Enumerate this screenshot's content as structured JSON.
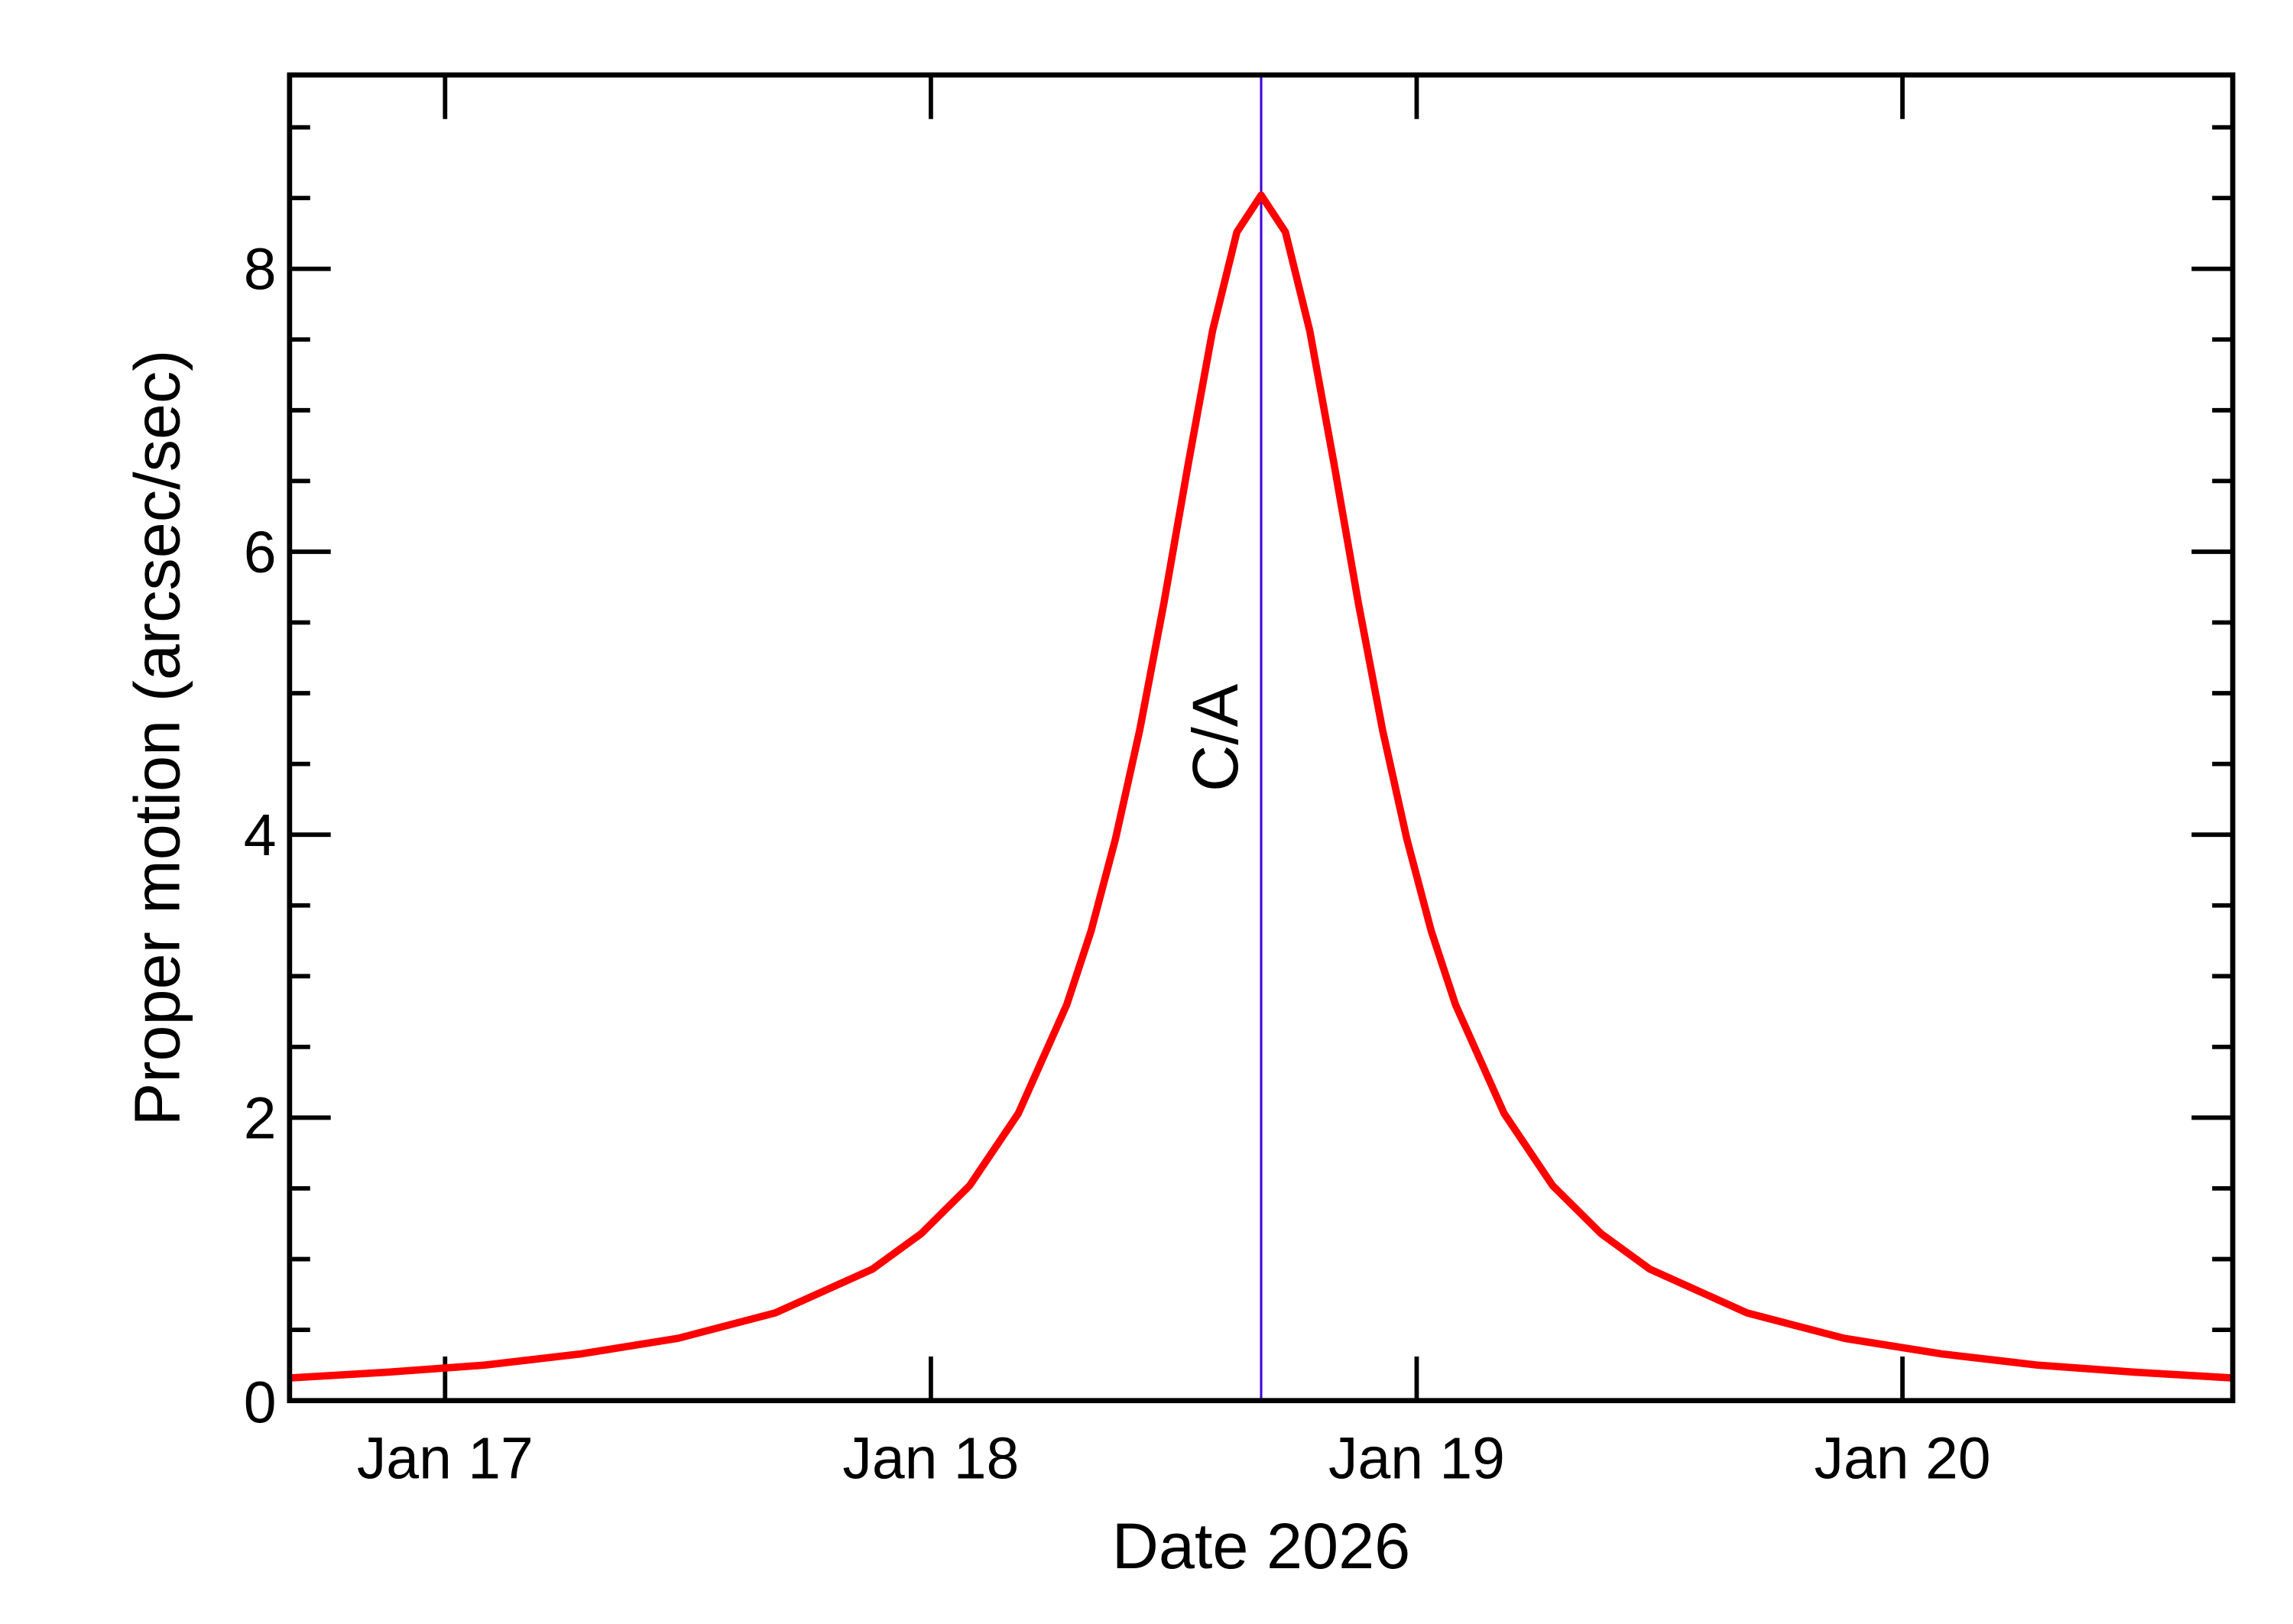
{
  "chart_data": {
    "type": "line",
    "title": "",
    "xlabel": "Date 2026",
    "ylabel": "Proper motion (arcsec/sec)",
    "xlim": [
      "2026-01-16T16:19",
      "2026-01-20T16:19"
    ],
    "ylim": [
      0,
      9.37
    ],
    "x_ticks": [
      {
        "value": "2026-01-17T00:00",
        "label": "Jan 17"
      },
      {
        "value": "2026-01-18T00:00",
        "label": "Jan 18"
      },
      {
        "value": "2026-01-19T00:00",
        "label": "Jan 19"
      },
      {
        "value": "2026-01-20T00:00",
        "label": "Jan 20"
      }
    ],
    "y_ticks": [
      {
        "value": 0,
        "label": "0"
      },
      {
        "value": 2,
        "label": "2"
      },
      {
        "value": 4,
        "label": "4"
      },
      {
        "value": 6,
        "label": "6"
      },
      {
        "value": 8,
        "label": "8"
      }
    ],
    "y_minor_step": 0.5,
    "grid": false,
    "series": [
      {
        "color": "#ff0000",
        "points": [
          [
            "2026-01-16T16:19",
            0.16
          ],
          [
            "2026-01-16T21:07",
            0.2
          ],
          [
            "2026-01-17T01:55",
            0.25
          ],
          [
            "2026-01-17T06:43",
            0.33
          ],
          [
            "2026-01-17T11:31",
            0.44
          ],
          [
            "2026-01-17T16:19",
            0.62
          ],
          [
            "2026-01-17T21:07",
            0.93
          ],
          [
            "2026-01-17T23:31",
            1.18
          ],
          [
            "2026-01-18T01:55",
            1.52
          ],
          [
            "2026-01-18T04:19",
            2.03
          ],
          [
            "2026-01-18T06:43",
            2.8
          ],
          [
            "2026-01-18T07:55",
            3.32
          ],
          [
            "2026-01-18T09:07",
            3.97
          ],
          [
            "2026-01-18T10:19",
            4.74
          ],
          [
            "2026-01-18T11:31",
            5.64
          ],
          [
            "2026-01-18T12:43",
            6.62
          ],
          [
            "2026-01-18T13:55",
            7.56
          ],
          [
            "2026-01-18T15:07",
            8.26
          ],
          [
            "2026-01-18T16:19",
            8.52
          ],
          [
            "2026-01-18T17:31",
            8.26
          ],
          [
            "2026-01-18T18:43",
            7.56
          ],
          [
            "2026-01-18T19:55",
            6.62
          ],
          [
            "2026-01-18T21:07",
            5.64
          ],
          [
            "2026-01-18T22:19",
            4.74
          ],
          [
            "2026-01-18T23:31",
            3.97
          ],
          [
            "2026-01-19T00:43",
            3.32
          ],
          [
            "2026-01-19T01:55",
            2.8
          ],
          [
            "2026-01-19T04:19",
            2.03
          ],
          [
            "2026-01-19T06:43",
            1.52
          ],
          [
            "2026-01-19T09:07",
            1.18
          ],
          [
            "2026-01-19T11:31",
            0.93
          ],
          [
            "2026-01-19T16:19",
            0.62
          ],
          [
            "2026-01-19T21:07",
            0.44
          ],
          [
            "2026-01-20T01:55",
            0.33
          ],
          [
            "2026-01-20T06:43",
            0.25
          ],
          [
            "2026-01-20T11:31",
            0.2
          ],
          [
            "2026-01-20T16:19",
            0.16
          ]
        ]
      }
    ],
    "annotations": [
      {
        "type": "vline",
        "x": "2026-01-18T16:19",
        "label": "C/A",
        "color": "#4400dd"
      }
    ]
  }
}
